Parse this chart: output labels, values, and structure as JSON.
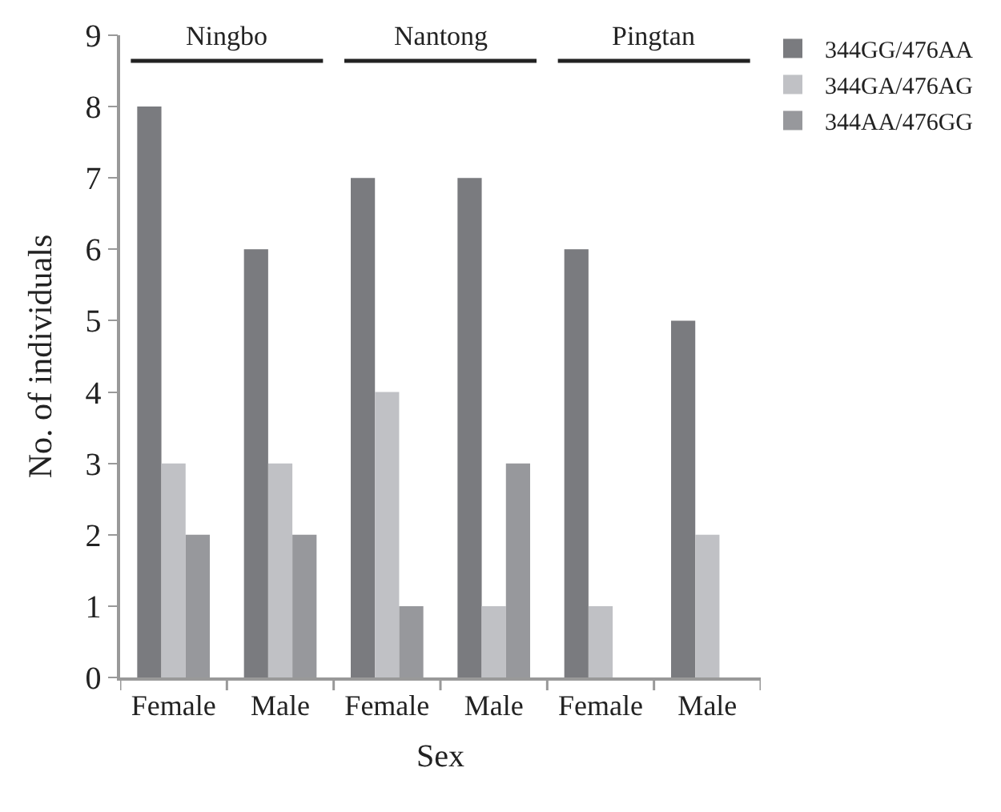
{
  "chart_data": {
    "type": "bar",
    "xlabel": "Sex",
    "ylabel": "No. of individuals",
    "categories": [
      "Female",
      "Male",
      "Female",
      "Male",
      "Female",
      "Male"
    ],
    "series": [
      {
        "name": "344GG/476AA",
        "color": "#7a7b7f",
        "values": [
          8,
          6,
          7,
          7,
          6,
          5
        ]
      },
      {
        "name": "344GA/476AG",
        "color": "#c0c1c5",
        "values": [
          3,
          3,
          4,
          1,
          1,
          2
        ]
      },
      {
        "name": "344AA/476GG",
        "color": "#97989c",
        "values": [
          2,
          2,
          1,
          3,
          0,
          0
        ]
      }
    ],
    "annotations": [
      "Ningbo",
      "Nantong",
      "Pingtan"
    ],
    "ylim": [
      0,
      9
    ],
    "yticks": [
      0,
      1,
      2,
      3,
      4,
      5,
      6,
      7,
      8,
      9
    ],
    "legend": "top right"
  }
}
